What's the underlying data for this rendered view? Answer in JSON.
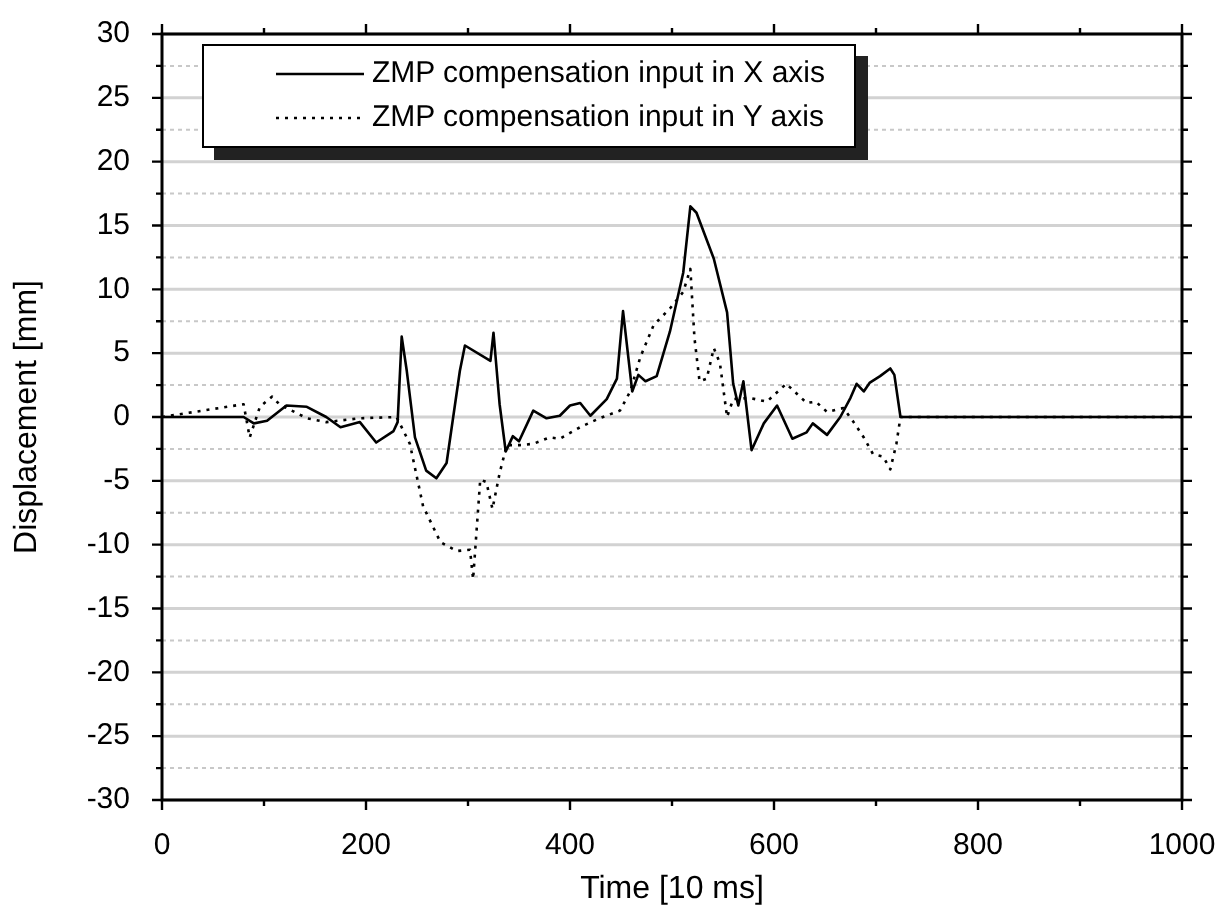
{
  "chart_data": {
    "type": "line",
    "xlabel": "Time [10 ms]",
    "ylabel": "Displacement [mm]",
    "xlim": [
      0,
      1000
    ],
    "ylim": [
      -30,
      30
    ],
    "xticks": [
      0,
      {
        "value": 100,
        "label": null
      },
      200,
      {
        "value": 300,
        "label": null
      },
      400,
      {
        "value": 500,
        "label": null
      },
      600,
      {
        "value": 700,
        "label": null
      },
      800,
      {
        "value": 900,
        "label": null
      },
      1000
    ],
    "yticks": [
      -30,
      {
        "value": -27.5,
        "label": null
      },
      -25,
      {
        "value": -22.5,
        "label": null
      },
      -20,
      {
        "value": -17.5,
        "label": null
      },
      -15,
      {
        "value": -12.5,
        "label": null
      },
      -10,
      {
        "value": -7.5,
        "label": null
      },
      -5,
      {
        "value": -2.5,
        "label": null
      },
      0,
      {
        "value": 2.5,
        "label": null
      },
      5,
      {
        "value": 7.5,
        "label": null
      },
      10,
      {
        "value": 12.5,
        "label": null
      },
      15,
      {
        "value": 17.5,
        "label": null
      },
      20,
      {
        "value": 22.5,
        "label": null
      },
      25,
      {
        "value": 27.5,
        "label": null
      },
      30
    ],
    "grid": "y",
    "legend": "top left",
    "marker": "none",
    "series": [
      {
        "name": "ZMP compensation input in X axis",
        "color": "#000000",
        "line_style": "solid",
        "x": [
          0,
          80,
          90,
          103,
          122,
          142,
          161,
          175,
          194,
          210,
          227,
          231,
          235,
          240,
          248,
          259,
          269,
          279,
          292,
          297,
          322,
          325,
          331,
          337,
          344,
          350,
          364,
          377,
          390,
          400,
          410,
          420,
          436,
          446,
          452,
          461,
          467,
          474,
          485,
          498,
          511,
          518,
          524,
          541,
          554,
          560,
          565,
          570,
          578,
          590,
          603,
          618,
          632,
          638,
          652,
          665,
          675,
          681,
          688,
          694,
          704,
          714,
          718,
          724,
          1000
        ],
        "values": [
          0,
          0,
          -0.5,
          -0.3,
          0.9,
          0.8,
          0,
          -0.8,
          -0.4,
          -2,
          -1.1,
          -0.4,
          6.3,
          3.6,
          -1.6,
          -4.2,
          -4.8,
          -3.6,
          3.6,
          5.6,
          4.4,
          6.6,
          1,
          -2.7,
          -1.5,
          -1.9,
          0.5,
          -0.1,
          0.1,
          0.9,
          1.1,
          0.1,
          1.4,
          3,
          8.3,
          2,
          3.3,
          2.8,
          3.2,
          6.7,
          11.3,
          16.5,
          16,
          12.4,
          8.2,
          2.6,
          0.9,
          2.8,
          -2.6,
          -0.5,
          0.9,
          -1.7,
          -1.2,
          -0.5,
          -1.4,
          0,
          1.5,
          2.6,
          2,
          2.7,
          3.2,
          3.8,
          3.3,
          0,
          0
        ]
      },
      {
        "name": "ZMP compensation input in Y axis",
        "color": "#000000",
        "line_style": "dotted",
        "x": [
          0,
          80,
          86,
          96,
          108,
          115,
          142,
          161,
          194,
          230,
          243,
          256,
          273,
          289,
          302,
          305,
          312,
          318,
          324,
          331,
          338,
          351,
          364,
          380,
          390,
          410,
          429,
          449,
          459,
          469,
          482,
          498,
          511,
          518,
          522,
          527,
          534,
          541,
          547,
          554,
          560,
          576,
          593,
          612,
          632,
          641,
          652,
          668,
          678,
          688,
          697,
          707,
          714,
          720,
          724,
          1000
        ],
        "values": [
          0,
          1,
          -1.6,
          0.8,
          1.6,
          1,
          -0.1,
          -0.4,
          -0.1,
          0,
          -2.1,
          -7,
          -9.8,
          -10.5,
          -10.4,
          -12.7,
          -4.9,
          -5.1,
          -7.2,
          -4.4,
          -2.2,
          -2.2,
          -2.1,
          -1.6,
          -1.7,
          -0.8,
          -0.1,
          0.5,
          2,
          4.7,
          7.2,
          8.5,
          9.8,
          11.6,
          6.2,
          2.8,
          3,
          5.4,
          4.2,
          0,
          1.4,
          1.5,
          1.2,
          2.6,
          1.1,
          1.2,
          0.4,
          0.7,
          -0.4,
          -1.6,
          -2.9,
          -3.1,
          -4.1,
          -2.1,
          0,
          0
        ]
      }
    ]
  }
}
